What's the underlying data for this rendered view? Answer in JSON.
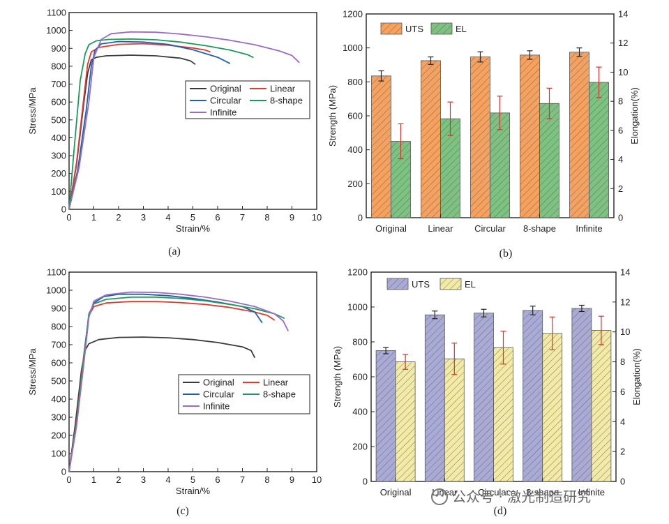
{
  "chart_data": [
    {
      "type": "line",
      "panel": "a",
      "caption": "(a)",
      "xlabel": "Strain/%",
      "ylabel": "Stress/MPa",
      "xlim": [
        0,
        10
      ],
      "ylim": [
        0,
        1100
      ],
      "xticks": [
        0,
        1,
        2,
        3,
        4,
        5,
        6,
        7,
        8,
        9,
        10
      ],
      "yticks": [
        0,
        100,
        200,
        300,
        400,
        500,
        600,
        700,
        800,
        900,
        1000,
        1100
      ],
      "legend": [
        "Original",
        "Linear",
        "Circular",
        "8-shape",
        "Infinite"
      ],
      "series": [
        {
          "name": "Original",
          "color": "#3a3a3a",
          "x": [
            0,
            0.3,
            0.6,
            0.75,
            0.9,
            1.1,
            1.5,
            2.5,
            3.5,
            4.5,
            4.9,
            5.1
          ],
          "y": [
            0,
            250,
            600,
            760,
            835,
            850,
            858,
            862,
            858,
            845,
            830,
            810
          ]
        },
        {
          "name": "Linear",
          "color": "#e03a2f",
          "x": [
            0,
            0.3,
            0.6,
            0.75,
            0.9,
            1.2,
            2,
            3,
            4,
            5,
            5.5,
            5.7
          ],
          "y": [
            0,
            260,
            630,
            810,
            880,
            905,
            922,
            926,
            918,
            902,
            890,
            880
          ]
        },
        {
          "name": "Circular",
          "color": "#1f5fa8",
          "x": [
            0,
            0.35,
            0.7,
            0.9,
            1.05,
            1.3,
            2,
            3,
            4,
            5,
            6,
            6.5
          ],
          "y": [
            0,
            220,
            560,
            800,
            890,
            925,
            938,
            935,
            922,
            892,
            850,
            815
          ]
        },
        {
          "name": "8-shape",
          "color": "#1a9a5a",
          "x": [
            0,
            0.2,
            0.45,
            0.65,
            0.8,
            1.1,
            1.6,
            2.5,
            3.5,
            4.5,
            5.5,
            6.5,
            7.2,
            7.45
          ],
          "y": [
            0,
            330,
            720,
            870,
            920,
            942,
            950,
            952,
            948,
            935,
            915,
            890,
            865,
            848
          ]
        },
        {
          "name": "Infinite",
          "color": "#9b6cc4",
          "x": [
            0,
            0.4,
            0.8,
            1.0,
            1.3,
            1.7,
            2.5,
            3.5,
            4.5,
            5.5,
            6.5,
            7.5,
            8.5,
            9.0,
            9.3
          ],
          "y": [
            0,
            230,
            600,
            850,
            950,
            982,
            992,
            990,
            980,
            965,
            945,
            920,
            885,
            860,
            820
          ]
        }
      ]
    },
    {
      "type": "bar",
      "panel": "b",
      "caption": "(b)",
      "categories": [
        "Original",
        "Linear",
        "Circular",
        "8-shape",
        "Infinite"
      ],
      "ylabel": "Strength (MPa)",
      "y2label": "Elongation(%)",
      "ylim": [
        0,
        1200
      ],
      "y2lim": [
        0,
        14
      ],
      "yticks": [
        0,
        200,
        400,
        600,
        800,
        1000,
        1200
      ],
      "y2ticks": [
        0,
        2,
        4,
        6,
        8,
        10,
        12,
        14
      ],
      "legend_placement": "top-left",
      "series": [
        {
          "name": "UTS",
          "axis": "left",
          "color": "#f6a15e",
          "values": [
            835,
            925,
            947,
            958,
            975
          ],
          "errors": [
            30,
            22,
            30,
            25,
            25
          ]
        },
        {
          "name": "EL",
          "axis": "right",
          "color": "#7dc280",
          "values": [
            5.25,
            6.8,
            7.2,
            7.85,
            9.3
          ],
          "errors": [
            1.2,
            1.15,
            1.15,
            1.05,
            1.05
          ]
        }
      ]
    },
    {
      "type": "line",
      "panel": "c",
      "caption": "(c)",
      "xlabel": "Strain/%",
      "ylabel": "Stress/MPa",
      "xlim": [
        0,
        10
      ],
      "ylim": [
        0,
        1100
      ],
      "xticks": [
        0,
        1,
        2,
        3,
        4,
        5,
        6,
        7,
        8,
        9,
        10
      ],
      "yticks": [
        0,
        100,
        200,
        300,
        400,
        500,
        600,
        700,
        800,
        900,
        1000,
        1100
      ],
      "legend": [
        "Original",
        "Linear",
        "Circular",
        "8-shape",
        "Infinite"
      ],
      "series": [
        {
          "name": "Original",
          "color": "#3a3a3a",
          "x": [
            0,
            0.25,
            0.5,
            0.65,
            0.8,
            1.2,
            2,
            3,
            4,
            5,
            6,
            7,
            7.35,
            7.5
          ],
          "y": [
            0,
            260,
            560,
            670,
            705,
            728,
            740,
            742,
            738,
            728,
            712,
            688,
            668,
            628
          ]
        },
        {
          "name": "Linear",
          "color": "#e03a2f",
          "x": [
            0,
            0.3,
            0.6,
            0.8,
            1.0,
            1.5,
            2.5,
            3.5,
            4.5,
            5.5,
            6.5,
            7.5,
            8.0,
            8.3
          ],
          "y": [
            0,
            280,
            650,
            860,
            910,
            930,
            938,
            938,
            932,
            922,
            905,
            880,
            862,
            835
          ]
        },
        {
          "name": "Circular",
          "color": "#1f5fa8",
          "x": [
            0,
            0.3,
            0.6,
            0.8,
            1.0,
            1.4,
            2,
            3,
            4,
            5,
            6,
            7,
            7.5,
            7.8
          ],
          "y": [
            0,
            260,
            620,
            860,
            930,
            965,
            978,
            978,
            970,
            955,
            935,
            910,
            880,
            820
          ]
        },
        {
          "name": "8-shape",
          "color": "#1a9a5a",
          "x": [
            0,
            0.3,
            0.6,
            0.8,
            1.0,
            1.5,
            2.5,
            3.5,
            4.5,
            5.5,
            6.5,
            7.5,
            8.3,
            8.7
          ],
          "y": [
            0,
            270,
            640,
            870,
            925,
            950,
            962,
            962,
            955,
            942,
            922,
            898,
            870,
            845
          ]
        },
        {
          "name": "Infinite",
          "color": "#9b6cc4",
          "x": [
            0,
            0.3,
            0.6,
            0.8,
            1.0,
            1.5,
            2.5,
            3.5,
            4.5,
            5.5,
            6.5,
            7.5,
            8.3,
            8.65,
            8.85
          ],
          "y": [
            0,
            250,
            600,
            850,
            940,
            975,
            990,
            988,
            978,
            962,
            940,
            910,
            870,
            830,
            775
          ]
        }
      ]
    },
    {
      "type": "bar",
      "panel": "d",
      "caption": "(d)",
      "categories": [
        "Original",
        "Linear",
        "Circular",
        "8-shape",
        "Infinite"
      ],
      "ylabel": "Strength (MPa)",
      "y2label": "Elongation(%)",
      "ylim": [
        0,
        1200
      ],
      "y2lim": [
        0,
        14
      ],
      "yticks": [
        0,
        200,
        400,
        600,
        800,
        1000,
        1200
      ],
      "y2ticks": [
        0,
        2,
        4,
        6,
        8,
        10,
        12,
        14
      ],
      "legend_placement": "top-left",
      "series": [
        {
          "name": "UTS",
          "axis": "left",
          "color": "#a9abd6",
          "values": [
            750,
            955,
            965,
            980,
            992
          ],
          "errors": [
            18,
            22,
            22,
            25,
            18
          ]
        },
        {
          "name": "EL",
          "axis": "right",
          "color": "#f3eaa6",
          "values": [
            8.0,
            8.2,
            8.95,
            9.9,
            10.1
          ],
          "errors": [
            0.5,
            1.05,
            1.1,
            1.1,
            0.95
          ]
        }
      ]
    }
  ],
  "watermark": {
    "text": "公众号 · 激光制造研究"
  }
}
